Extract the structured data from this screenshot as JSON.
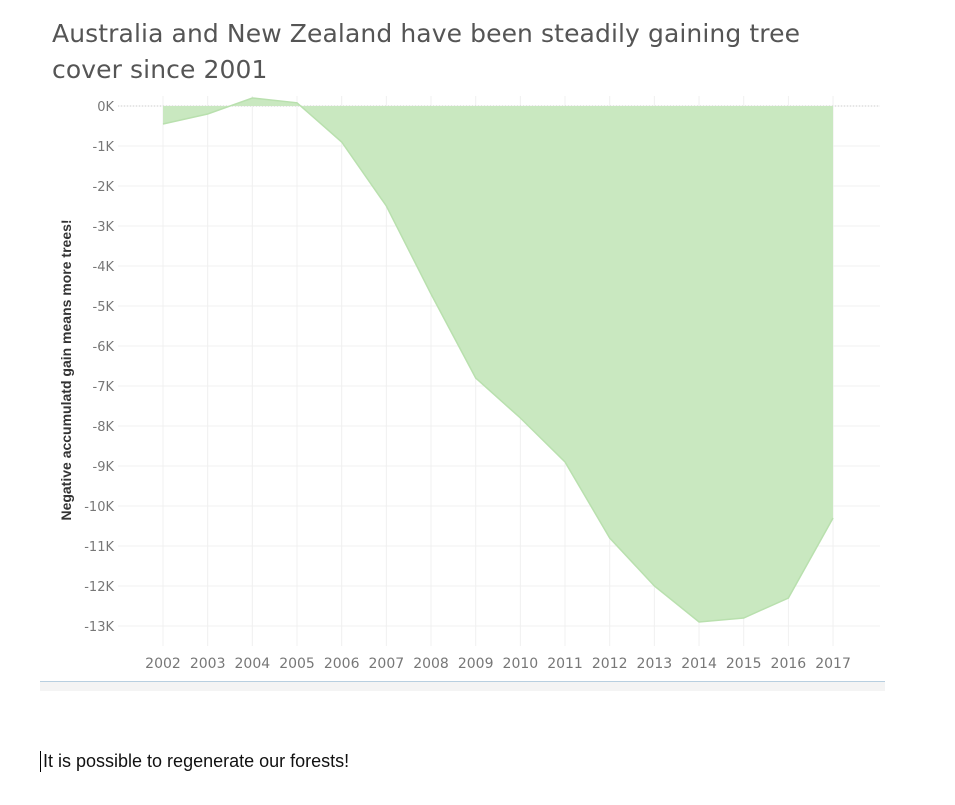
{
  "chart_data": {
    "type": "area",
    "title": "Australia and New Zealand have been steadily gaining tree cover since 2001",
    "xlabel": "",
    "ylabel": "Negative accumulatd gain means more trees!",
    "categories": [
      "2002",
      "2003",
      "2004",
      "2005",
      "2006",
      "2007",
      "2008",
      "2009",
      "2010",
      "2011",
      "2012",
      "2013",
      "2014",
      "2015",
      "2016",
      "2017"
    ],
    "values": [
      -450,
      -200,
      200,
      80,
      -900,
      -2500,
      -4700,
      -6800,
      -7800,
      -8900,
      -10800,
      -12000,
      -12900,
      -12800,
      -12300,
      -10300
    ],
    "ylim": [
      -13500,
      250
    ],
    "yticks": [
      0,
      -1000,
      -2000,
      -3000,
      -4000,
      -5000,
      -6000,
      -7000,
      -8000,
      -9000,
      -10000,
      -11000,
      -12000,
      -13000
    ],
    "ytick_labels": [
      "0K",
      "-1K",
      "-2K",
      "-3K",
      "-4K",
      "-5K",
      "-6K",
      "-7K",
      "-8K",
      "-9K",
      "-10K",
      "-11K",
      "-12K",
      "-13K"
    ],
    "grid": true,
    "legend": "none",
    "fill_color": "#c9e8c0",
    "stroke_color": "#b9e0ae"
  },
  "caption": "It is possible to regenerate our forests!"
}
